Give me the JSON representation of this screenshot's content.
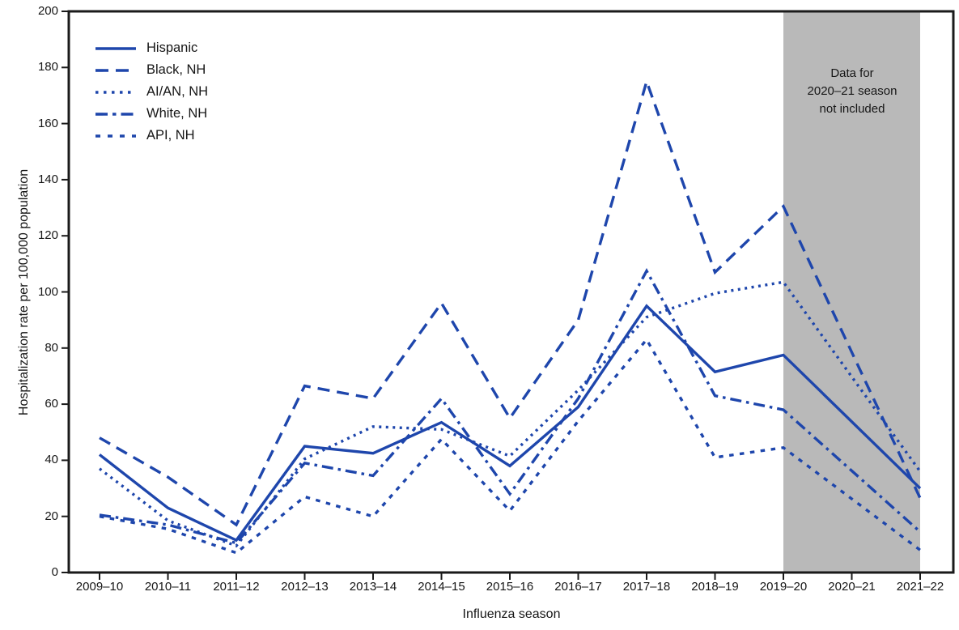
{
  "figure": {
    "y_axis_title": "Hospitalization rate per 100,000 population",
    "x_axis_title": "Influenza season",
    "annotation": "Data for\n2020–21 season\nnot included",
    "line_color": "#1e46ac",
    "band_color": "#b9b9b9",
    "axis_color": "#1a1a1a"
  },
  "chart_data": {
    "type": "line",
    "x": [
      "2009–10",
      "2010–11",
      "2011–12",
      "2012–13",
      "2013–14",
      "2014–15",
      "2015–16",
      "2016–17",
      "2017–18",
      "2018–19",
      "2019–20",
      "2020–21",
      "2021–22"
    ],
    "series": [
      {
        "name": "Hispanic",
        "dash": "solid",
        "values": [
          42,
          23,
          11.5,
          45,
          42.5,
          53.5,
          38,
          59,
          95,
          71.5,
          77.5,
          null,
          30
        ]
      },
      {
        "name": "Black, NH",
        "dash": "long-dash",
        "values": [
          48,
          34,
          17,
          66.5,
          62,
          96,
          55,
          90,
          175,
          107,
          130.5,
          null,
          26.5
        ]
      },
      {
        "name": "AI/AN, NH",
        "dash": "dotted",
        "values": [
          37,
          18.5,
          9.5,
          40.5,
          52,
          51,
          41.5,
          65,
          91,
          99.5,
          103.5,
          null,
          36
        ]
      },
      {
        "name": "White, NH",
        "dash": "dash-dot",
        "values": [
          20.5,
          17,
          10.5,
          39,
          34.5,
          62,
          28,
          62,
          107.5,
          63,
          58,
          null,
          14.5
        ]
      },
      {
        "name": "API, NH",
        "dash": "short-dash",
        "values": [
          20,
          15.5,
          7,
          27,
          20,
          47.5,
          22,
          54,
          83,
          41,
          44.5,
          null,
          8
        ]
      }
    ],
    "title": "",
    "xlabel": "Influenza season",
    "ylabel": "Hospitalization rate per 100,000 population",
    "ylim": [
      0,
      200
    ],
    "y_ticks": [
      0,
      20,
      40,
      60,
      80,
      100,
      120,
      140,
      160,
      180,
      200
    ],
    "grid": false,
    "legend_position": "top-left",
    "excluded_region": {
      "from": "2019–20",
      "to": "2021–22",
      "label": "Data for\n2020–21 season\nnot included",
      "note": "2020–21 season has no data; lines connect 2019–20 directly to 2021–22"
    }
  }
}
